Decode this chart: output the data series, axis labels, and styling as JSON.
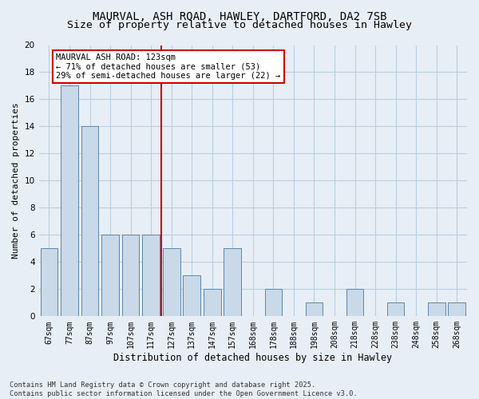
{
  "title1": "MAURVAL, ASH ROAD, HAWLEY, DARTFORD, DA2 7SB",
  "title2": "Size of property relative to detached houses in Hawley",
  "xlabel": "Distribution of detached houses by size in Hawley",
  "ylabel": "Number of detached properties",
  "categories": [
    "67sqm",
    "77sqm",
    "87sqm",
    "97sqm",
    "107sqm",
    "117sqm",
    "127sqm",
    "137sqm",
    "147sqm",
    "157sqm",
    "168sqm",
    "178sqm",
    "188sqm",
    "198sqm",
    "208sqm",
    "218sqm",
    "228sqm",
    "238sqm",
    "248sqm",
    "258sqm",
    "268sqm"
  ],
  "values": [
    5,
    17,
    14,
    6,
    6,
    6,
    5,
    3,
    2,
    5,
    0,
    2,
    0,
    1,
    0,
    2,
    0,
    1,
    0,
    1,
    1
  ],
  "bar_color": "#c9d9e8",
  "bar_edge_color": "#5a87b0",
  "grid_color": "#b8cfe0",
  "background_color": "#e8eef5",
  "vline_x": 5.5,
  "vline_color": "#cc0000",
  "annotation_text": "MAURVAL ASH ROAD: 123sqm\n← 71% of detached houses are smaller (53)\n29% of semi-detached houses are larger (22) →",
  "annotation_box_color": "#ffffff",
  "annotation_box_edge": "#cc0000",
  "ylim": [
    0,
    20
  ],
  "yticks": [
    0,
    2,
    4,
    6,
    8,
    10,
    12,
    14,
    16,
    18,
    20
  ],
  "footer": "Contains HM Land Registry data © Crown copyright and database right 2025.\nContains public sector information licensed under the Open Government Licence v3.0.",
  "title_fontsize": 10,
  "subtitle_fontsize": 9.5,
  "tick_fontsize": 7,
  "ylabel_fontsize": 8,
  "xlabel_fontsize": 8.5,
  "annot_fontsize": 7.5
}
